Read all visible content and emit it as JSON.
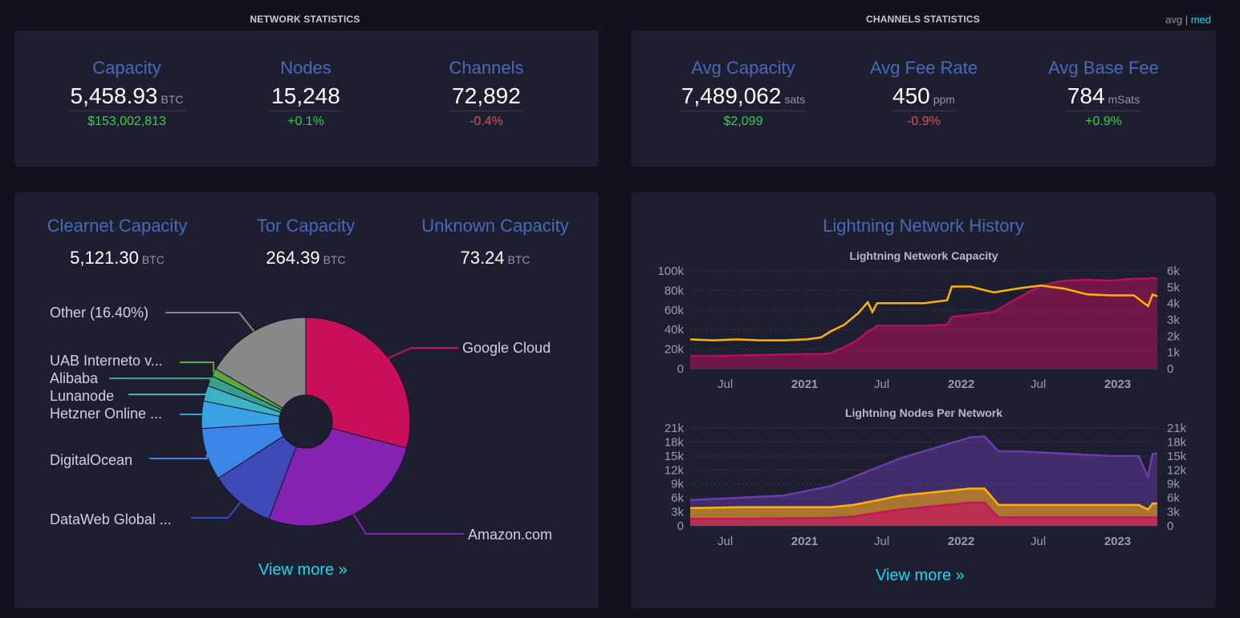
{
  "network": {
    "title": "NETWORK STATISTICS",
    "stats": [
      {
        "label": "Capacity",
        "value": "5,458.93",
        "unit": "BTC",
        "sub": "$153,002,813",
        "sub_type": "green"
      },
      {
        "label": "Nodes",
        "value": "15,248",
        "unit": "",
        "sub": "+0.1%",
        "sub_type": "pos"
      },
      {
        "label": "Channels",
        "value": "72,892",
        "unit": "",
        "sub": "-0.4%",
        "sub_type": "neg"
      }
    ]
  },
  "channels": {
    "title": "CHANNELS STATISTICS",
    "toggle": {
      "avg": "avg",
      "separator": "|",
      "med": "med",
      "selected": "med"
    },
    "stats": [
      {
        "label": "Avg Capacity",
        "value": "7,489,062",
        "unit": "sats",
        "sub": "$2,099",
        "sub_type": "green"
      },
      {
        "label": "Avg Fee Rate",
        "value": "450",
        "unit": "ppm",
        "sub": "-0.9%",
        "sub_type": "neg"
      },
      {
        "label": "Avg Base Fee",
        "value": "784",
        "unit": "mSats",
        "sub": "+0.9%",
        "sub_type": "pos"
      }
    ]
  },
  "capacity_breakdown": {
    "items": [
      {
        "label": "Clearnet Capacity",
        "value": "5,121.30",
        "unit": "BTC"
      },
      {
        "label": "Tor Capacity",
        "value": "264.39",
        "unit": "BTC"
      },
      {
        "label": "Unknown Capacity",
        "value": "73.24",
        "unit": "BTC"
      }
    ],
    "view_more": "View more »"
  },
  "history": {
    "title": "Lightning Network History",
    "view_more": "View more »"
  },
  "colors": {
    "background": "#11121e",
    "card": "#1d1f31",
    "accent_blue": "#4a68b9",
    "link": "#1bd8f4",
    "positive": "#3bcc49",
    "negative": "#d9534f",
    "capacity_line": "#ffb300",
    "capacity_area": "#b5105a",
    "clearnet": "#6c3bb0",
    "tor": "#ffb300",
    "unannounced": "#c2185b"
  },
  "chart_data": [
    {
      "type": "pie",
      "title": "",
      "slices": [
        {
          "label": "Google Cloud",
          "value": 28.8,
          "color": "#c90f5c"
        },
        {
          "label": "Amazon.com",
          "value": 26.4,
          "color": "#8723b3"
        },
        {
          "label": "DataWeb Global ...",
          "value": 10.0,
          "color": "#3f4ab8"
        },
        {
          "label": "DigitalOcean",
          "value": 8.0,
          "color": "#3d84e9"
        },
        {
          "label": "Hetzner Online ...",
          "value": 4.2,
          "color": "#39a2e6"
        },
        {
          "label": "Lunanode",
          "value": 2.4,
          "color": "#3cb2c5"
        },
        {
          "label": "Alibaba",
          "value": 1.6,
          "color": "#35a08e"
        },
        {
          "label": "UAB Interneto v...",
          "value": 1.2,
          "color": "#5ca83d"
        },
        {
          "label": "Other (16.40%)",
          "value": 16.4,
          "color": "#888888"
        }
      ]
    },
    {
      "type": "area",
      "title": "Lightning Network Capacity",
      "x_ticks": [
        "Jul",
        "2021",
        "Jul",
        "2022",
        "Jul",
        "2023"
      ],
      "y_left_ticks": [
        "0",
        "20k",
        "40k",
        "60k",
        "80k",
        "100k"
      ],
      "y_right_ticks": [
        "0",
        "1k",
        "2k",
        "3k",
        "4k",
        "5k",
        "6k"
      ],
      "ylim_left": [
        0,
        100000
      ],
      "ylim_right": [
        0,
        6000
      ],
      "x": [
        0,
        5,
        10,
        15,
        20,
        25,
        28,
        30,
        33,
        36,
        38,
        39,
        40,
        50,
        55,
        56,
        60,
        65,
        70,
        75,
        80,
        85,
        90,
        95,
        98,
        99,
        100
      ],
      "series": [
        {
          "values": [
            13000,
            13000,
            13500,
            14000,
            14500,
            15000,
            15000,
            16000,
            22000,
            30000,
            38000,
            40000,
            44000,
            44000,
            45000,
            53000,
            55000,
            58000,
            72000,
            85000,
            90000,
            91000,
            90000,
            92000,
            92000,
            93000,
            92000
          ],
          "color": "#b5105a",
          "fill": true
        },
        {
          "values": [
            30000,
            29000,
            30000,
            29000,
            29000,
            30000,
            32000,
            38000,
            45000,
            57000,
            68000,
            58000,
            67000,
            67000,
            70000,
            84000,
            84000,
            78000,
            82000,
            85000,
            82000,
            76000,
            75000,
            75000,
            64000,
            76000,
            74000
          ],
          "color": "#ffb300",
          "fill": false
        }
      ]
    },
    {
      "type": "area",
      "title": "Lightning Nodes Per Network",
      "x_ticks": [
        "Jul",
        "2021",
        "Jul",
        "2022",
        "Jul",
        "2023"
      ],
      "y_left_ticks": [
        "0",
        "3k",
        "6k",
        "9k",
        "12k",
        "15k",
        "18k",
        "21k"
      ],
      "y_right_ticks": [
        "0",
        "3k",
        "6k",
        "9k",
        "12k",
        "15k",
        "18k",
        "21k"
      ],
      "ylim_left": [
        0,
        21000
      ],
      "ylim_right": [
        0,
        21000
      ],
      "x": [
        0,
        10,
        20,
        30,
        35,
        40,
        45,
        50,
        55,
        60,
        63,
        66,
        70,
        80,
        90,
        96,
        98,
        99,
        100
      ],
      "series": [
        {
          "values": [
            5500,
            6000,
            6500,
            8500,
            10500,
            12500,
            14500,
            16000,
            17500,
            19000,
            19200,
            16000,
            16000,
            15500,
            15000,
            15000,
            10500,
            15500,
            15500
          ],
          "color": "#6c3bb0",
          "fill": true
        },
        {
          "values": [
            3800,
            4000,
            4000,
            4000,
            4500,
            5500,
            6500,
            7000,
            7500,
            8000,
            8000,
            4500,
            4500,
            4500,
            4500,
            4500,
            3500,
            4800,
            4800
          ],
          "color": "#ffb300",
          "fill": true
        },
        {
          "values": [
            1500,
            1500,
            1600,
            1700,
            2000,
            2800,
            3500,
            4000,
            4500,
            5000,
            5000,
            1800,
            1800,
            1800,
            1800,
            1800,
            1800,
            1800,
            1800
          ],
          "color": "#c2185b",
          "fill": true
        }
      ]
    }
  ]
}
